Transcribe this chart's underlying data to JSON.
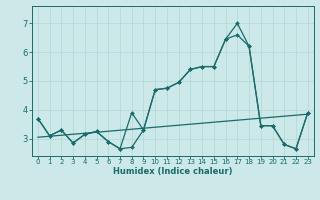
{
  "xlabel": "Humidex (Indice chaleur)",
  "background_color": "#cce8e8",
  "line_color": "#1a6b6b",
  "grid_color": "#b0d8d8",
  "xlim": [
    -0.5,
    23.5
  ],
  "ylim": [
    2.4,
    7.6
  ],
  "yticks": [
    3,
    4,
    5,
    6,
    7
  ],
  "xticks": [
    0,
    1,
    2,
    3,
    4,
    5,
    6,
    7,
    8,
    9,
    10,
    11,
    12,
    13,
    14,
    15,
    16,
    17,
    18,
    19,
    20,
    21,
    22,
    23
  ],
  "line1_x": [
    0,
    1,
    2,
    3,
    4,
    5,
    6,
    7,
    8,
    9,
    10,
    11,
    12,
    13,
    14,
    15,
    16,
    17,
    18,
    19,
    20,
    21,
    22,
    23
  ],
  "line1_y": [
    3.7,
    3.1,
    3.3,
    2.85,
    3.15,
    3.25,
    2.9,
    2.65,
    2.7,
    3.3,
    4.7,
    4.75,
    4.95,
    5.4,
    5.5,
    5.5,
    6.45,
    7.0,
    6.2,
    3.45,
    3.45,
    2.8,
    2.65,
    3.9
  ],
  "line2_x": [
    0,
    1,
    2,
    3,
    4,
    5,
    6,
    7,
    8,
    9,
    10,
    11,
    12,
    13,
    14,
    15,
    16,
    17,
    18,
    19,
    20,
    21,
    22,
    23
  ],
  "line2_y": [
    3.7,
    3.1,
    3.3,
    2.85,
    3.15,
    3.25,
    2.9,
    2.65,
    3.9,
    3.3,
    4.7,
    4.75,
    4.95,
    5.4,
    5.5,
    5.5,
    6.45,
    6.6,
    6.2,
    3.45,
    3.45,
    2.8,
    2.65,
    3.9
  ],
  "line3_x": [
    0,
    23
  ],
  "line3_y": [
    3.05,
    3.85
  ]
}
